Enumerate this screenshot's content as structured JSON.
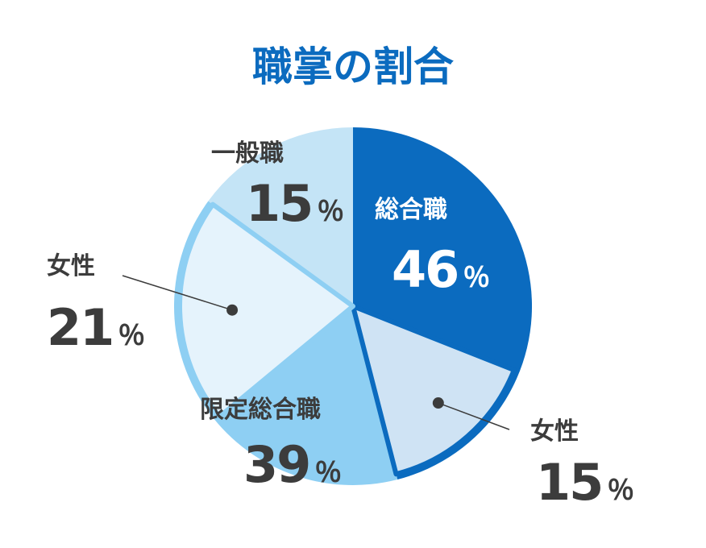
{
  "chart_data": {
    "type": "pie",
    "title": "職掌の割合",
    "percent_sign": "％",
    "slices": [
      {
        "id": "sogo",
        "label": "総合職",
        "value": 46,
        "percent_text": "46",
        "color": "#0b6bbf",
        "text_color": "#ffffff"
      },
      {
        "id": "sogo-josei",
        "label": "女性",
        "value": 15,
        "percent_text": "15",
        "color": "#cfe3f4",
        "text_color": "#3c3c3c",
        "nested": true
      },
      {
        "id": "gentei",
        "label": "限定総合職",
        "value": 39,
        "percent_text": "39",
        "color": "#8ecff3",
        "text_color": "#3c3c3c"
      },
      {
        "id": "gentei-josei",
        "label": "女性",
        "value": 21,
        "percent_text": "21",
        "color": "#e5f3fc",
        "text_color": "#3c3c3c",
        "nested": true
      },
      {
        "id": "ippan",
        "label": "一般職",
        "value": 15,
        "percent_text": "15",
        "color": "#c4e4f6",
        "text_color": "#3c3c3c"
      }
    ],
    "title_color": "#0b6bbf",
    "outline_colors": {
      "sogo": "#0b6bbf",
      "gentei": "#8ecff3"
    }
  }
}
